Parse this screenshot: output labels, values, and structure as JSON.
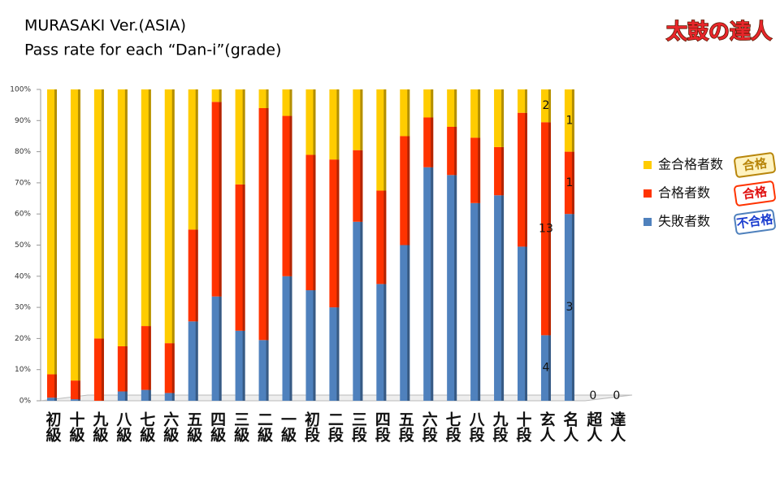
{
  "chart_data": {
    "type": "stacked_bar",
    "title": "MURASAKI Ver.(ASIA)",
    "subtitle": "Pass rate for each “Dan-i”(grade)",
    "logo": "太鼓の達人",
    "categories": [
      "初級",
      "十級",
      "九級",
      "八級",
      "七級",
      "六級",
      "五級",
      "四級",
      "三級",
      "二級",
      "一級",
      "初段",
      "二段",
      "三段",
      "四段",
      "五段",
      "六段",
      "七段",
      "八段",
      "九段",
      "十段",
      "玄人",
      "名人",
      "超人",
      "達人"
    ],
    "ylim": [
      0,
      100
    ],
    "yticks": [
      {
        "value": 0,
        "label": "0%"
      },
      {
        "value": 10,
        "label": "10%"
      },
      {
        "value": 20,
        "label": "20%"
      },
      {
        "value": 30,
        "label": "30%"
      },
      {
        "value": 40,
        "label": "40%"
      },
      {
        "value": 50,
        "label": "50%"
      },
      {
        "value": 60,
        "label": "60%"
      },
      {
        "value": 70,
        "label": "70%"
      },
      {
        "value": 80,
        "label": "80%"
      },
      {
        "value": 90,
        "label": "90%"
      },
      {
        "value": 100,
        "label": "100%"
      }
    ],
    "grid": false,
    "series": [
      {
        "name": "失敗者数",
        "badge": "不合格",
        "color": "#4f81bd",
        "values": [
          1,
          0.5,
          0,
          3,
          3.5,
          2.5,
          25.5,
          33.5,
          22.5,
          19.5,
          40,
          35.5,
          30,
          57.5,
          37.5,
          50,
          75,
          72.5,
          63.5,
          66,
          49.5,
          21.05,
          60,
          null,
          null
        ],
        "counts": [
          null,
          null,
          null,
          null,
          null,
          null,
          null,
          null,
          null,
          null,
          null,
          null,
          null,
          null,
          null,
          null,
          null,
          null,
          null,
          null,
          null,
          4,
          3,
          0,
          0
        ]
      },
      {
        "name": "合格者数",
        "badge": "合格",
        "color": "#ff3300",
        "values": [
          7.5,
          6,
          20,
          14.5,
          20.5,
          16,
          29.5,
          62.5,
          47,
          74.5,
          51.5,
          43.5,
          47.5,
          23,
          30,
          35,
          16,
          15.5,
          21,
          15.5,
          43,
          68.42,
          20,
          null,
          null
        ],
        "counts": [
          null,
          null,
          null,
          null,
          null,
          null,
          null,
          null,
          null,
          null,
          null,
          null,
          null,
          null,
          null,
          null,
          null,
          null,
          null,
          null,
          null,
          13,
          1,
          null,
          null
        ]
      },
      {
        "name": "金合格者数",
        "badge": "合格",
        "color": "#ffcc00",
        "values": [
          91.5,
          93.5,
          80,
          82.5,
          76,
          81.5,
          45,
          4,
          30.5,
          6,
          8.5,
          21,
          22.5,
          19.5,
          32.5,
          15,
          9,
          12,
          15.5,
          18.5,
          7.5,
          10.53,
          20,
          null,
          null
        ],
        "counts": [
          null,
          null,
          null,
          null,
          null,
          null,
          null,
          null,
          null,
          null,
          null,
          null,
          null,
          null,
          null,
          null,
          null,
          null,
          null,
          null,
          null,
          2,
          1,
          null,
          null
        ]
      }
    ]
  }
}
